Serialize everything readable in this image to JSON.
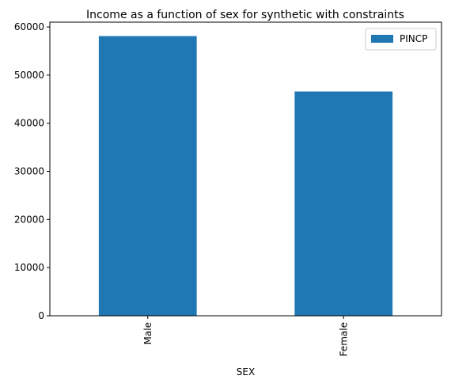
{
  "chart_data": {
    "type": "bar",
    "title": "Income as a function of sex for synthetic with constraints",
    "xlabel": "SEX",
    "ylabel": "",
    "categories": [
      "Male",
      "Female"
    ],
    "series": [
      {
        "name": "PINCP",
        "values": [
          58100,
          46600
        ]
      }
    ],
    "ylim": [
      0,
      61000
    ],
    "yticks": [
      0,
      10000,
      20000,
      30000,
      40000,
      50000,
      60000
    ],
    "legend_position": "top-right",
    "grid": false,
    "bar_color": "#1f77b4"
  }
}
